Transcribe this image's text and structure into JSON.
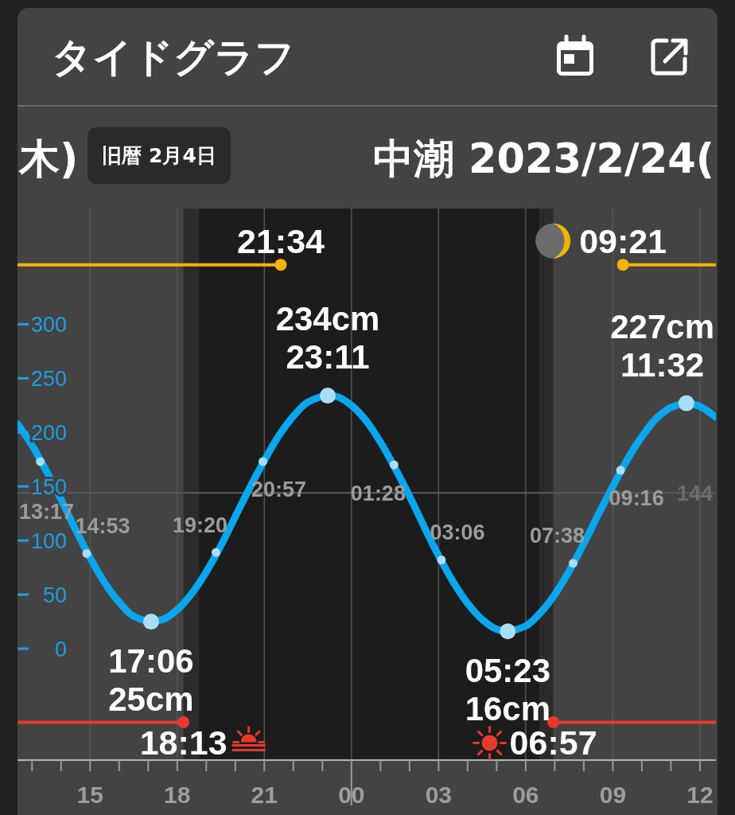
{
  "chart_data": {
    "type": "line",
    "title": "タイドグラフ",
    "subtitle": "中潮 2023/2/24(",
    "annotations": [
      "木)",
      "旧暦 2月4日",
      {
        "text": "13:17",
        "x": "2023-02-23T13:17",
        "y": 173
      },
      {
        "text": "14:53",
        "x": "2023-02-23T14:53",
        "y": 88
      },
      {
        "text": "19:20",
        "x": "2023-02-23T19:20",
        "y": 89
      },
      {
        "text": "20:57",
        "x": "2023-02-23T20:57",
        "y": 173
      },
      {
        "text": "01:28",
        "x": "2023-02-24T01:28",
        "y": 170
      },
      {
        "text": "03:06",
        "x": "2023-02-24T03:06",
        "y": 82
      },
      {
        "text": "07:38",
        "x": "2023-02-24T07:38",
        "y": 79
      },
      {
        "text": "09:16",
        "x": "2023-02-24T09:16",
        "y": 165
      },
      {
        "text": "21:34",
        "x": "2023-02-23T21:34",
        "y": 355
      },
      {
        "text": "09:21",
        "x": "2023-02-24T09:21",
        "y": 355
      },
      {
        "text": "18:13",
        "x": "2023-02-23T18:13",
        "y": -68
      },
      {
        "text": "06:57",
        "x": "2023-02-24T06:57",
        "y": -68
      },
      {
        "text": "17:06",
        "x": "2023-02-23T17:06",
        "y": 25
      },
      {
        "text": "25cm",
        "x": "2023-02-23T17:06",
        "y": 25
      },
      {
        "text": "234cm",
        "x": "2023-02-23T23:11",
        "y": 234
      },
      {
        "text": "23:11",
        "x": "2023-02-23T23:11",
        "y": 234
      },
      {
        "text": "05:23",
        "x": "2023-02-24T05:23",
        "y": 16
      },
      {
        "text": "16cm",
        "x": "2023-02-24T05:23",
        "y": 16
      },
      {
        "text": "227cm",
        "x": "2023-02-24T11:32",
        "y": 227
      },
      {
        "text": "11:32",
        "x": "2023-02-24T11:32",
        "y": 227
      }
    ],
    "xlim": [
      "2023-02-23T12:30",
      "2023-02-24T12:33"
    ],
    "ylim": [
      -103,
      407
    ],
    "xticks": [
      {
        "value": "2023-02-23T13:00",
        "label": null
      },
      {
        "value": "2023-02-23T14:00",
        "label": null
      },
      {
        "value": "2023-02-23T15:00",
        "label": "15"
      },
      {
        "value": "2023-02-23T16:00",
        "label": null
      },
      {
        "value": "2023-02-23T17:00",
        "label": null
      },
      {
        "value": "2023-02-23T18:00",
        "label": "18"
      },
      {
        "value": "2023-02-23T19:00",
        "label": null
      },
      {
        "value": "2023-02-23T20:00",
        "label": null
      },
      {
        "value": "2023-02-23T21:00",
        "label": "21"
      },
      {
        "value": "2023-02-23T22:00",
        "label": null
      },
      {
        "value": "2023-02-23T23:00",
        "label": null
      },
      {
        "value": "2023-02-24T00:00",
        "label": "00"
      },
      {
        "value": "2023-02-24T01:00",
        "label": null
      },
      {
        "value": "2023-02-24T02:00",
        "label": null
      },
      {
        "value": "2023-02-24T03:00",
        "label": "03"
      },
      {
        "value": "2023-02-24T04:00",
        "label": null
      },
      {
        "value": "2023-02-24T05:00",
        "label": null
      },
      {
        "value": "2023-02-24T06:00",
        "label": "06"
      },
      {
        "value": "2023-02-24T07:00",
        "label": null
      },
      {
        "value": "2023-02-24T08:00",
        "label": null
      },
      {
        "value": "2023-02-24T09:00",
        "label": "09"
      },
      {
        "value": "2023-02-24T10:00",
        "label": null
      },
      {
        "value": "2023-02-24T11:00",
        "label": null
      },
      {
        "value": "2023-02-24T12:00",
        "label": "12"
      }
    ],
    "yticks": [
      0,
      50,
      100,
      150,
      200,
      250,
      300
    ],
    "grid": "x",
    "ref_lines": [
      {
        "axis": "y",
        "value": 144,
        "label": "144",
        "color": "#5c5c5c"
      }
    ],
    "bands": [
      {
        "axis": "x",
        "from": "2023-02-23T18:13",
        "to": "2023-02-23T18:45",
        "color": "#2b2b2b"
      },
      {
        "axis": "x",
        "from": "2023-02-23T18:45",
        "to": "2023-02-24T06:28",
        "color": "#1c1c1c"
      },
      {
        "axis": "x",
        "from": "2023-02-24T06:28",
        "to": "2023-02-24T06:57",
        "color": "#2b2b2b"
      }
    ],
    "series": [
      {
        "type": "line",
        "color": "#0aa6ee",
        "x": [
          "2023-02-23T12:30",
          "2023-02-23T13:00",
          "2023-02-23T13:30",
          "2023-02-23T14:00",
          "2023-02-23T14:30",
          "2023-02-23T15:00",
          "2023-02-23T15:30",
          "2023-02-23T16:00",
          "2023-02-23T16:30",
          "2023-02-23T17:06",
          "2023-02-23T17:30",
          "2023-02-23T18:00",
          "2023-02-23T18:30",
          "2023-02-23T19:00",
          "2023-02-23T19:30",
          "2023-02-23T20:00",
          "2023-02-23T20:30",
          "2023-02-23T21:00",
          "2023-02-23T21:30",
          "2023-02-23T22:00",
          "2023-02-23T22:30",
          "2023-02-23T23:11",
          "2023-02-23T23:30",
          "2023-02-24T00:00",
          "2023-02-24T00:30",
          "2023-02-24T01:00",
          "2023-02-24T01:30",
          "2023-02-24T02:00",
          "2023-02-24T02:30",
          "2023-02-24T03:00",
          "2023-02-24T03:30",
          "2023-02-24T04:00",
          "2023-02-24T04:30",
          "2023-02-24T05:00",
          "2023-02-24T05:23",
          "2023-02-24T06:00",
          "2023-02-24T06:30",
          "2023-02-24T07:00",
          "2023-02-24T07:30",
          "2023-02-24T08:00",
          "2023-02-24T08:30",
          "2023-02-24T09:00",
          "2023-02-24T09:30",
          "2023-02-24T10:00",
          "2023-02-24T10:30",
          "2023-02-24T11:00",
          "2023-02-24T11:32",
          "2023-02-24T12:00",
          "2023-02-24T12:33"
        ],
        "values": [
          208,
          188,
          164,
          138,
          110,
          84,
          61,
          43,
          30,
          25,
          27,
          36,
          51,
          71,
          95,
          122,
          149,
          174,
          197,
          215,
          228,
          234,
          233,
          225,
          211,
          191,
          167,
          141,
          113,
          86,
          62,
          42,
          27,
          18,
          16,
          21,
          33,
          50,
          72,
          97,
          124,
          150,
          175,
          196,
          213,
          223,
          227,
          224,
          214
        ]
      },
      {
        "type": "scatter",
        "color": "#a9def9",
        "x": [
          "2023-02-23T13:17",
          "2023-02-23T14:53",
          "2023-02-23T19:20",
          "2023-02-23T20:57",
          "2023-02-24T01:28",
          "2023-02-24T03:06",
          "2023-02-24T07:38",
          "2023-02-24T09:16"
        ],
        "values": [
          173,
          88,
          89,
          173,
          170,
          82,
          79,
          165
        ]
      },
      {
        "type": "scatter",
        "color": "#a9def9",
        "x": [
          "2023-02-23T17:06",
          "2023-02-23T23:11",
          "2023-02-24T05:23",
          "2023-02-24T11:32"
        ],
        "values": [
          25,
          234,
          16,
          227
        ]
      },
      {
        "type": "line",
        "color": "#f5b301",
        "x": [
          "2023-02-23T12:30",
          "2023-02-23T21:34"
        ],
        "values": [
          355,
          355
        ]
      },
      {
        "type": "line",
        "color": "#f5b301",
        "x": [
          "2023-02-24T09:21",
          "2023-02-24T12:33"
        ],
        "values": [
          355,
          355
        ]
      },
      {
        "type": "scatter",
        "color": "#f5b301",
        "x": [
          "2023-02-23T21:34",
          "2023-02-24T09:21"
        ],
        "values": [
          355,
          355
        ]
      },
      {
        "type": "line",
        "color": "#e83a2c",
        "x": [
          "2023-02-23T12:30",
          "2023-02-23T18:13"
        ],
        "values": [
          -68,
          -68
        ]
      },
      {
        "type": "line",
        "color": "#e83a2c",
        "x": [
          "2023-02-24T06:57",
          "2023-02-24T12:33"
        ],
        "values": [
          -68,
          -68
        ]
      },
      {
        "type": "scatter",
        "color": "#e83a2c",
        "x": [
          "2023-02-23T18:13",
          "2023-02-24T06:57"
        ],
        "values": [
          -68,
          -68
        ]
      }
    ]
  }
}
